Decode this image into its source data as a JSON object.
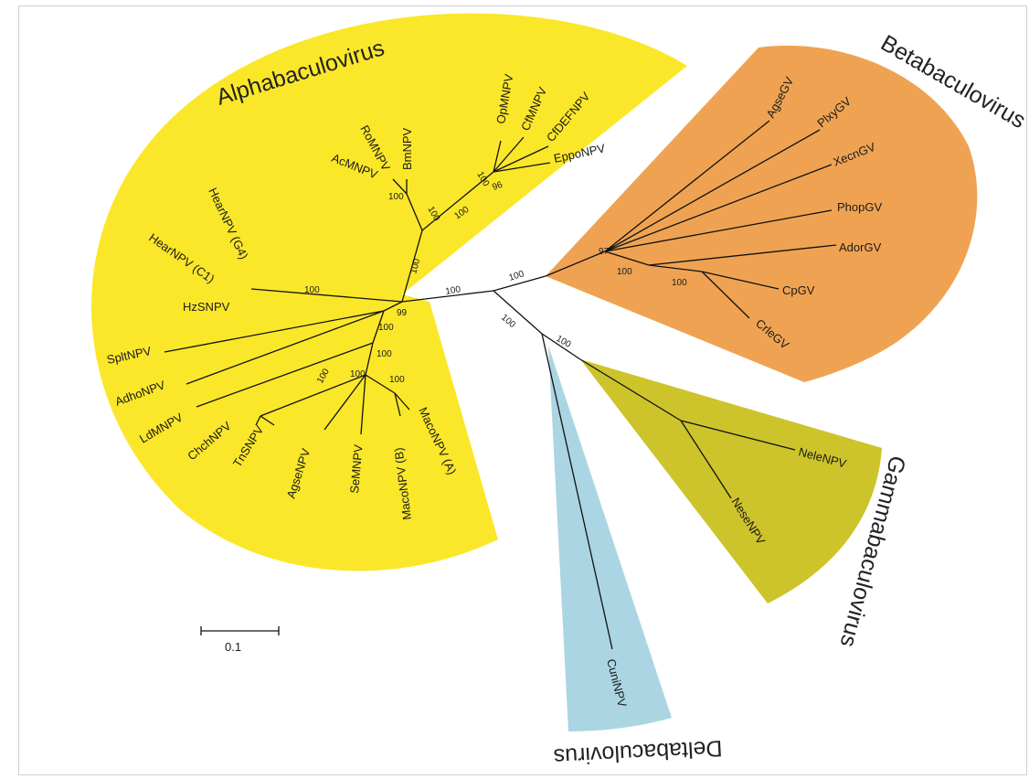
{
  "colors": {
    "alpha": "#fbe72a",
    "beta": "#efa352",
    "gamma": "#cdc42b",
    "delta": "#abd5e3",
    "line": "#111111"
  },
  "genera": {
    "alpha": "Alphabaculovirus",
    "beta": "Betabaculovirus",
    "gamma": "Gammabaculovirus",
    "delta": "Deltabaculovirus"
  },
  "taxa": {
    "opmnpv": "OpMNPV",
    "cfmnpv": "CfMNPV",
    "cfdefnpv": "CfDEFNPV",
    "eppnpv": "EppoNPV",
    "romnpv": "RoMNPV",
    "bmnpv": "BmNPV",
    "acmnpv": "AcMNPV",
    "hearnpv_g4": "HearNPV (G4)",
    "hearnpv_c1": "HearNPV (C1)",
    "hzsnpv": "HzSNPV",
    "spltnpv": "SpltNPV",
    "adhonpv": "AdhoNPV",
    "ldmnpv": "LdMNPV",
    "chchnpv": "ChchNPV",
    "trisnpv": "TnSNPV",
    "agsenpv": "AgseNPV",
    "semnpv": "SeMNPV",
    "maconpv_b": "MacoNPV (B)",
    "maconpv_a": "MacoNPV (A)",
    "agsegv": "AgseGV",
    "plxygv": "PlxyGV",
    "xecngv": "XecnGV",
    "phopgv": "PhopGV",
    "adorgv": "AdorGV",
    "cpgv": "CpGV",
    "crlegv": "CrleGV",
    "nelenpv": "NeleNPV",
    "nesenpv": "NeseNPV",
    "cuninpv": "CuniNPV"
  },
  "support": {
    "s100": "100",
    "s99": "99",
    "s97": "97",
    "s96": "96"
  },
  "scale": {
    "label": "0.1"
  }
}
